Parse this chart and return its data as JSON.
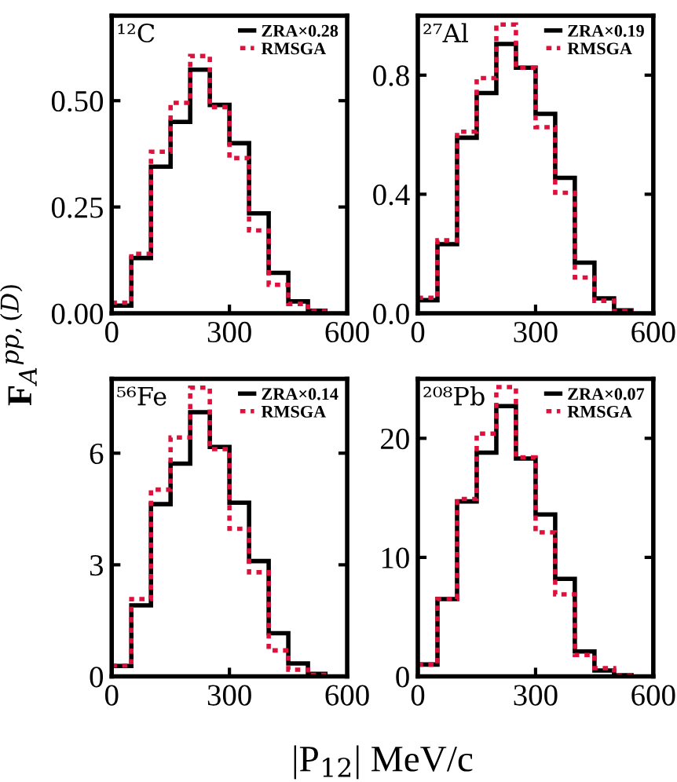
{
  "chart_data": [
    {
      "type": "histogram",
      "bins": [
        0,
        50,
        100,
        150,
        200,
        250,
        300,
        350,
        400,
        450,
        500,
        550
      ],
      "annotations": [
        "¹²C"
      ],
      "ylabel": "F$_{A}$$^{pp,(D)}$",
      "xlim": [
        0,
        600
      ],
      "xticks": [
        0,
        300,
        600
      ],
      "ylim": [
        0,
        0.7
      ],
      "yticks": [
        {
          "value": 0,
          "label": "0.00"
        },
        {
          "value": 0.25,
          "label": "0.25"
        },
        {
          "value": 0.5,
          "label": "0.50"
        }
      ],
      "legend": "top right",
      "grid": false,
      "series": [
        {
          "name": "ZRA×0.28",
          "color": "#000000",
          "line_style": "solid",
          "values": [
            0.018,
            0.13,
            0.345,
            0.45,
            0.573,
            0.49,
            0.4,
            0.235,
            0.095,
            0.028,
            0.006
          ]
        },
        {
          "name": "RMSGA",
          "color": "#e0103c",
          "line_style": "dotted",
          "values": [
            0.025,
            0.14,
            0.38,
            0.495,
            0.605,
            0.485,
            0.365,
            0.195,
            0.067,
            0.022,
            0.005
          ]
        }
      ]
    },
    {
      "type": "histogram",
      "bins": [
        0,
        50,
        100,
        150,
        200,
        250,
        300,
        350,
        400,
        450,
        500,
        550
      ],
      "annotations": [
        "²⁷Al"
      ],
      "xlim": [
        0,
        600
      ],
      "xticks": [
        0,
        300,
        600
      ],
      "ylim": [
        0,
        1.0
      ],
      "yticks": [
        {
          "value": 0,
          "label": "0.0"
        },
        0.4,
        0.8
      ],
      "legend": "top right",
      "grid": false,
      "series": [
        {
          "name": "ZRA×0.19",
          "color": "#000000",
          "line_style": "solid",
          "values": [
            0.044,
            0.232,
            0.59,
            0.74,
            0.905,
            0.825,
            0.67,
            0.455,
            0.17,
            0.05,
            0.01
          ]
        },
        {
          "name": "RMSGA",
          "color": "#e0103c",
          "line_style": "dotted",
          "values": [
            0.052,
            0.245,
            0.61,
            0.79,
            0.97,
            0.825,
            0.625,
            0.405,
            0.12,
            0.042,
            0.007
          ]
        }
      ]
    },
    {
      "type": "histogram",
      "bins": [
        0,
        50,
        100,
        150,
        200,
        250,
        300,
        350,
        400,
        450,
        500,
        550
      ],
      "annotations": [
        "⁵⁶Fe"
      ],
      "xlabel": "|P$_{12}$| MeV/c",
      "xlim": [
        0,
        600
      ],
      "xticks": [
        0,
        300,
        600
      ],
      "ylim": [
        0,
        8
      ],
      "yticks": [
        0,
        3,
        6
      ],
      "legend": "top right",
      "grid": false,
      "series": [
        {
          "name": "ZRA×0.14",
          "color": "#000000",
          "line_style": "solid",
          "values": [
            0.28,
            1.91,
            4.63,
            5.72,
            7.1,
            6.17,
            4.67,
            3.1,
            1.16,
            0.35,
            0.07
          ]
        },
        {
          "name": "RMSGA",
          "color": "#e0103c",
          "line_style": "dotted",
          "values": [
            0.29,
            2.08,
            5.02,
            6.42,
            7.76,
            6.11,
            3.97,
            2.8,
            0.7,
            0.18,
            0.04
          ]
        }
      ]
    },
    {
      "type": "histogram",
      "bins": [
        0,
        50,
        100,
        150,
        200,
        250,
        300,
        350,
        400,
        450,
        500,
        550
      ],
      "annotations": [
        "²⁰⁸Pb"
      ],
      "xlim": [
        0,
        600
      ],
      "xticks": [
        0,
        300,
        600
      ],
      "ylim": [
        0,
        25
      ],
      "yticks": [
        0,
        10,
        20
      ],
      "legend": "top right",
      "grid": false,
      "series": [
        {
          "name": "ZRA×0.07",
          "color": "#000000",
          "line_style": "solid",
          "values": [
            1.0,
            6.5,
            14.7,
            18.8,
            22.7,
            18.3,
            13.6,
            8.2,
            2.1,
            0.5,
            0.1
          ]
        },
        {
          "name": "RMSGA",
          "color": "#e0103c",
          "line_style": "dotted",
          "values": [
            1.0,
            6.5,
            14.9,
            20.4,
            24.3,
            18.4,
            12.1,
            6.9,
            1.8,
            0.7,
            0.1
          ]
        }
      ]
    }
  ]
}
